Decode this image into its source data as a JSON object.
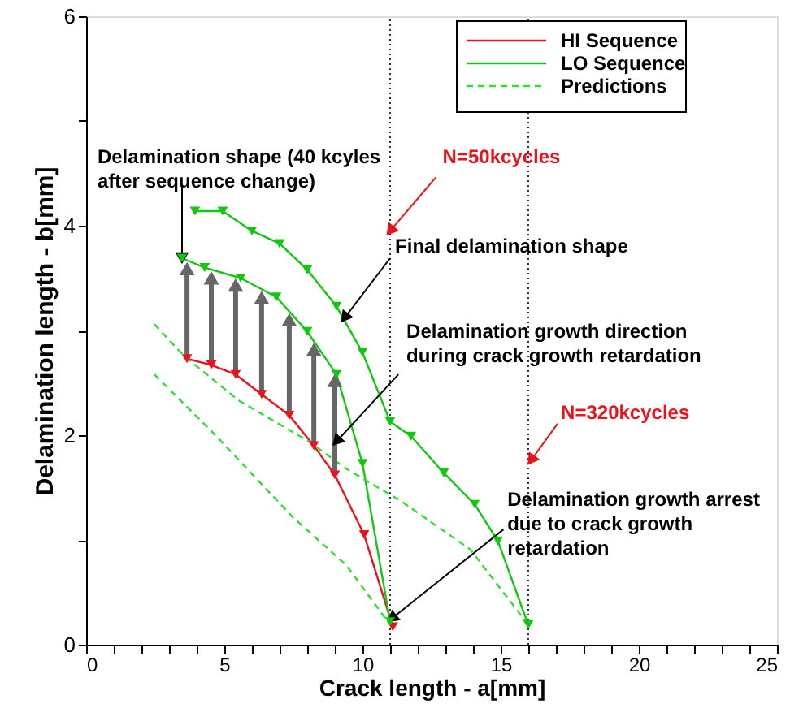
{
  "chart_data": {
    "type": "line",
    "xlabel": "Crack length - a[mm]",
    "ylabel": "Delamination length - b[mm]",
    "xlim": [
      0,
      25
    ],
    "ylim": [
      0,
      6
    ],
    "xticks": [
      0,
      {
        "value": 1,
        "label": null
      },
      {
        "value": 2,
        "label": null
      },
      {
        "value": 3,
        "label": null
      },
      {
        "value": 4,
        "label": null
      },
      5,
      {
        "value": 6,
        "label": null
      },
      {
        "value": 7,
        "label": null
      },
      {
        "value": 8,
        "label": null
      },
      {
        "value": 9,
        "label": null
      },
      10,
      {
        "value": 11,
        "label": null
      },
      {
        "value": 12,
        "label": null
      },
      {
        "value": 13,
        "label": null
      },
      {
        "value": 14,
        "label": null
      },
      15,
      {
        "value": 16,
        "label": null
      },
      {
        "value": 17,
        "label": null
      },
      {
        "value": 18,
        "label": null
      },
      {
        "value": 19,
        "label": null
      },
      20,
      {
        "value": 21,
        "label": null
      },
      {
        "value": 22,
        "label": null
      },
      {
        "value": 23,
        "label": null
      },
      {
        "value": 24,
        "label": null
      },
      25
    ],
    "yticks": [
      0,
      {
        "value": 1,
        "label": null
      },
      2,
      {
        "value": 3,
        "label": null
      },
      4,
      {
        "value": 5,
        "label": null
      },
      6
    ],
    "grid": false,
    "legend": "top right",
    "series": [
      {
        "name": "HI Sequence",
        "color": "#e8141b",
        "marker": "triangle",
        "line_style": "solid",
        "x": [
          3.65,
          4.53,
          5.41,
          6.35,
          7.35,
          8.24,
          9.0,
          10.06,
          11.1
        ],
        "values": [
          2.73,
          2.67,
          2.58,
          2.39,
          2.19,
          1.9,
          1.62,
          1.05,
          0.17
        ]
      },
      {
        "name": "LO Sequence",
        "color": "#12c712",
        "marker": "triangle",
        "line_style": "solid",
        "x": [
          3.47,
          4.29,
          5.59,
          6.88,
          8.0,
          9.06,
          10.0,
          11.0
        ],
        "values": [
          3.69,
          3.6,
          3.5,
          3.32,
          2.99,
          2.58,
          1.73,
          0.22
        ]
      },
      {
        "color": "#12c712",
        "marker": "triangle",
        "line_style": "solid",
        "x": [
          3.94,
          4.94,
          6.0,
          7.0,
          8.0,
          9.06,
          10.0,
          11.0,
          11.76,
          12.94,
          14.06,
          14.9,
          16.0
        ],
        "values": [
          4.14,
          4.14,
          3.95,
          3.83,
          3.58,
          3.23,
          2.79,
          2.13,
          1.99,
          1.64,
          1.34,
          0.99,
          0.19
        ]
      },
      {
        "name": "Predictions",
        "color": "#33dd33",
        "marker": "none",
        "line_style": "dashed",
        "x": [
          2.47,
          3.53,
          5.53,
          8.06,
          9.41,
          11.4,
          13.9,
          16.0
        ],
        "values": [
          3.06,
          2.76,
          2.33,
          1.94,
          1.68,
          1.37,
          0.91,
          0.19
        ]
      },
      {
        "color": "#33dd33",
        "marker": "none",
        "line_style": "dashed",
        "x": [
          2.47,
          4.53,
          7.47,
          9.41,
          11.0
        ],
        "values": [
          2.58,
          2.04,
          1.22,
          0.76,
          0.19
        ]
      }
    ],
    "ref_lines": [
      {
        "axis": "x",
        "value": 11,
        "color": "#000000",
        "line_style": "dotted"
      },
      {
        "axis": "x",
        "value": 16,
        "color": "#000000",
        "line_style": "dotted"
      }
    ],
    "annotations": [
      {
        "text": "Delamination shape (40 kcyles\nafter sequence change)",
        "x": 3.47,
        "y": 3.69
      },
      {
        "text": "N=50kcycles",
        "x": 11,
        "y": 3.95
      },
      {
        "text": "Final delamination shape",
        "x": 9.35,
        "y": 3.12
      },
      {
        "text": "Delamination growth direction\nduring crack growth retardation",
        "x": 9.06,
        "y": 1.94
      },
      {
        "text": "N=320kcycles",
        "x": 16.1,
        "y": 1.76
      },
      {
        "text": "Delamination growth arrest\ndue to crack growth\nretardation",
        "x": 11.06,
        "y": 0.25
      }
    ]
  }
}
